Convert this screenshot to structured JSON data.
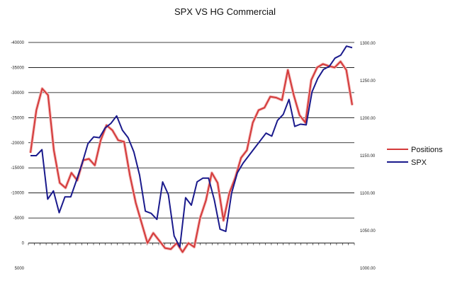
{
  "chart_data": {
    "type": "line",
    "title": "SPX VS HG Commercial",
    "left_axis": {
      "reversed": true,
      "range": [
        -40000,
        5000
      ],
      "ticks": [
        "-40000",
        "-35000",
        "-30000",
        "-25000",
        "-20000",
        "-15000",
        "-10000",
        "-5000",
        "0",
        "5000"
      ]
    },
    "right_axis": {
      "range": [
        1000,
        1300
      ],
      "ticks": [
        "1300.00",
        "1250.00",
        "1200.00",
        "1150.00",
        "1100.00",
        "1050.00",
        "1000.00"
      ]
    },
    "grid": true,
    "legend": "right",
    "series": [
      {
        "name": "Positions",
        "color": "#d43a3a",
        "axis": "left",
        "values": [
          -18000,
          -26500,
          -30800,
          -29500,
          -18500,
          -12000,
          -11000,
          -14000,
          -12500,
          -16500,
          -16800,
          -15500,
          -20500,
          -23500,
          -22500,
          -20500,
          -20200,
          -13500,
          -8000,
          -4000,
          0,
          -2000,
          -500,
          1000,
          1200,
          0,
          1800,
          0,
          800,
          -5000,
          -8500,
          -14000,
          -12000,
          -4500,
          -10000,
          -13000,
          -17000,
          -18500,
          -24000,
          -26500,
          -27000,
          -29200,
          -29000,
          -28500,
          -34500,
          -29500,
          -25500,
          -24000,
          -32500,
          -35000,
          -35700,
          -35300,
          -35000,
          -36200,
          -34500,
          -27500
        ]
      },
      {
        "name": "SPX",
        "color": "#1a1a8c",
        "axis": "right",
        "values": [
          1150,
          1150,
          1158,
          1092,
          1103,
          1074,
          1095,
          1095,
          1117,
          1140,
          1166,
          1175,
          1174,
          1187,
          1193,
          1203,
          1184,
          1174,
          1155,
          1124,
          1076,
          1073,
          1065,
          1115,
          1098,
          1043,
          1028,
          1094,
          1084,
          1115,
          1120,
          1120,
          1091,
          1052,
          1049,
          1100,
          1127,
          1140,
          1150,
          1160,
          1170,
          1180,
          1176,
          1197,
          1205,
          1225,
          1189,
          1192,
          1191,
          1235,
          1253,
          1265,
          1269,
          1280,
          1284,
          1296,
          1294
        ]
      }
    ]
  }
}
